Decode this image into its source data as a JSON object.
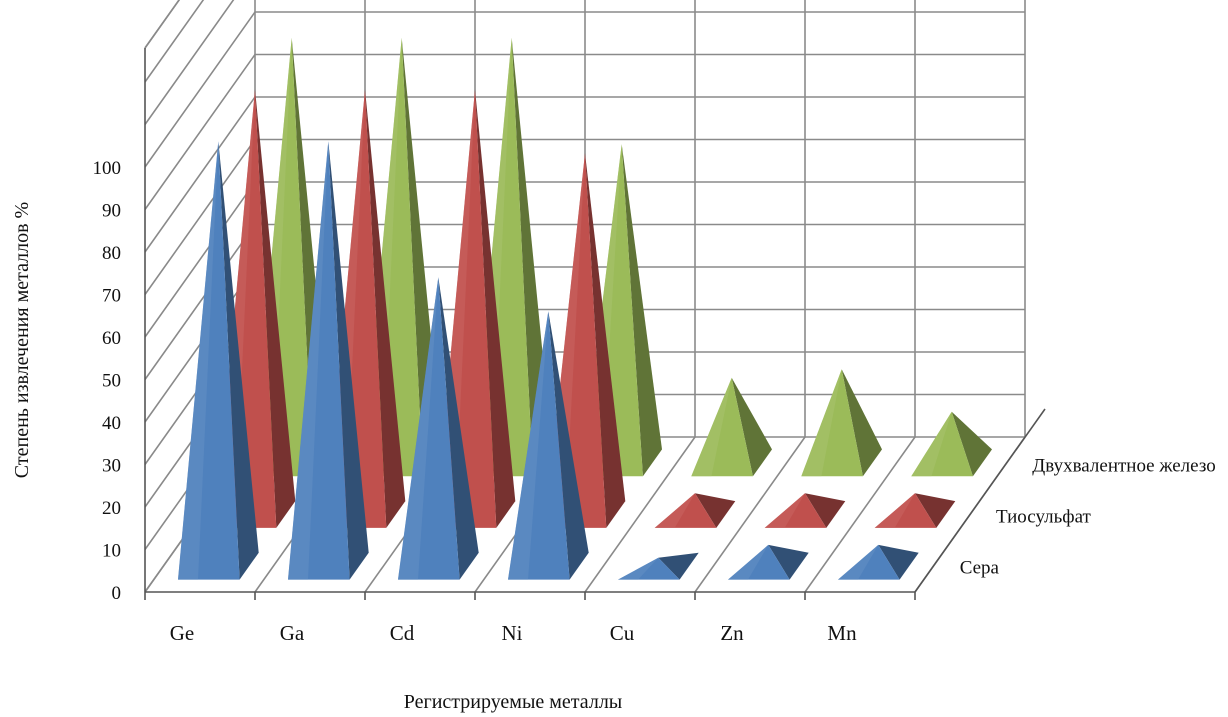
{
  "chart_data": {
    "type": "bar",
    "subtype": "3d-pyramid",
    "title": "",
    "xlabel": "Регистрируемые металлы",
    "ylabel": "Степень извлечения металлов %",
    "ylim": [
      0,
      100
    ],
    "yticks": [
      0,
      10,
      20,
      30,
      40,
      50,
      60,
      70,
      80,
      90,
      100
    ],
    "categories": [
      "Ge",
      "Ga",
      "Cd",
      "Ni",
      "Cu",
      "Zn",
      "Mn"
    ],
    "series": [
      {
        "name": "Сера",
        "color": "#4f81bd",
        "values": [
          100,
          100,
          68,
          60,
          2,
          5,
          5
        ]
      },
      {
        "name": "Тиосульфат",
        "color": "#c0504d",
        "values": [
          100,
          100,
          100,
          85,
          5,
          5,
          5
        ]
      },
      {
        "name": "Двухвалентное железо",
        "color": "#9bbb59",
        "values": [
          100,
          100,
          100,
          75,
          20,
          22,
          12
        ]
      }
    ],
    "grid": true,
    "legend": "series-axis-right"
  }
}
